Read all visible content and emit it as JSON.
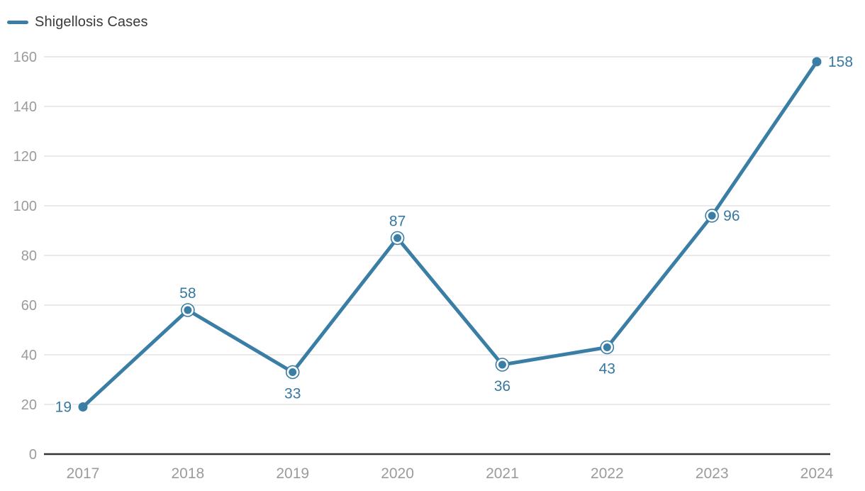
{
  "chart_data": {
    "type": "line",
    "title": "",
    "legend": "Shigellosis Cases",
    "legend_position": "top-left",
    "categories": [
      "2017",
      "2018",
      "2019",
      "2020",
      "2021",
      "2022",
      "2023",
      "2024"
    ],
    "series": [
      {
        "name": "Shigellosis Cases",
        "values": [
          19,
          58,
          33,
          87,
          36,
          43,
          96,
          158
        ]
      }
    ],
    "xlabel": "",
    "ylabel": "",
    "ylim": [
      0,
      160
    ],
    "y_ticks": [
      0,
      20,
      40,
      60,
      80,
      100,
      120,
      140,
      160
    ],
    "grid": "horizontal",
    "data_labels": [
      "19",
      "58",
      "33",
      "87",
      "36",
      "43",
      "96",
      "158"
    ],
    "label_positions": [
      "left",
      "above",
      "below",
      "above",
      "below",
      "below",
      "right",
      "right"
    ],
    "marker_styles": [
      "dot",
      "ring",
      "ring",
      "ring",
      "ring",
      "ring",
      "ring",
      "dot"
    ],
    "colors": {
      "line": "#3a7ea6",
      "data_label": "#36789f",
      "tick_label": "#9b9b9b",
      "gridline": "#e4e4e4",
      "axis_line": "#333333",
      "legend_text": "#3a3a3a",
      "background": "#ffffff"
    }
  }
}
